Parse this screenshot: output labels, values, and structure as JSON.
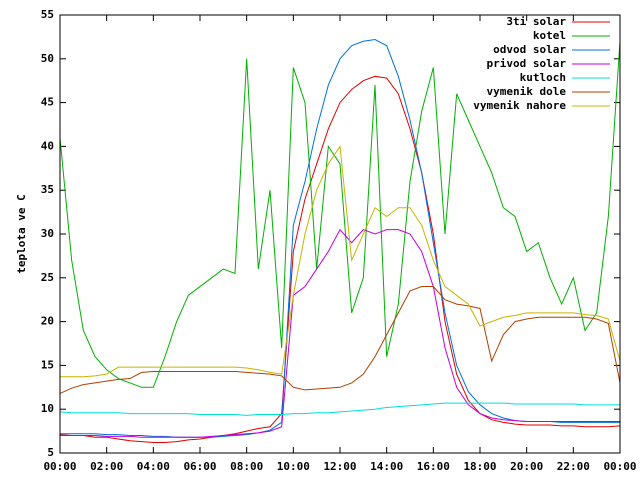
{
  "chart_data": {
    "type": "line",
    "ylabel": "teplota ve C",
    "x": [
      0,
      0.5,
      1,
      1.5,
      2,
      2.5,
      3,
      3.5,
      4,
      4.5,
      5,
      5.5,
      6,
      6.5,
      7,
      7.5,
      8,
      8.5,
      9,
      9.5,
      10,
      10.5,
      11,
      11.5,
      12,
      12.5,
      13,
      13.5,
      14,
      14.5,
      15,
      15.5,
      16,
      16.5,
      17,
      17.5,
      18,
      18.5,
      19,
      19.5,
      20,
      20.5,
      21,
      21.5,
      22,
      22.5,
      23,
      23.5,
      24
    ],
    "xlim": [
      0,
      24
    ],
    "xticks": [
      {
        "value": 0,
        "label": "00:00"
      },
      {
        "value": 2,
        "label": "02:00"
      },
      {
        "value": 4,
        "label": "04:00"
      },
      {
        "value": 6,
        "label": "06:00"
      },
      {
        "value": 8,
        "label": "08:00"
      },
      {
        "value": 10,
        "label": "10:00"
      },
      {
        "value": 12,
        "label": "12:00"
      },
      {
        "value": 14,
        "label": "14:00"
      },
      {
        "value": 16,
        "label": "16:00"
      },
      {
        "value": 18,
        "label": "18:00"
      },
      {
        "value": 20,
        "label": "20:00"
      },
      {
        "value": 22,
        "label": "22:00"
      },
      {
        "value": 24,
        "label": "00:00"
      }
    ],
    "ylim": [
      5,
      55
    ],
    "yticks": [
      5,
      10,
      15,
      20,
      25,
      30,
      35,
      40,
      45,
      50,
      55
    ],
    "legend": "upper right",
    "series": [
      {
        "name": "3ti solar",
        "color": "#e00000",
        "values": [
          7.1,
          7.0,
          7.0,
          6.8,
          6.8,
          6.6,
          6.4,
          6.3,
          6.2,
          6.2,
          6.3,
          6.5,
          6.6,
          6.8,
          7.0,
          7.2,
          7.5,
          7.8,
          8.0,
          9.5,
          28,
          34,
          38,
          42,
          45,
          46.5,
          47.5,
          48,
          47.8,
          46,
          42,
          37,
          30,
          20,
          14,
          11,
          9.5,
          8.8,
          8.5,
          8.3,
          8.2,
          8.2,
          8.2,
          8.1,
          8.1,
          8.0,
          8.0,
          8.0,
          8.1
        ]
      },
      {
        "name": "kotel",
        "color": "#00b000",
        "values": [
          41,
          27,
          19,
          16,
          14.5,
          13.5,
          13,
          12.5,
          12.5,
          16,
          20,
          23,
          24,
          25,
          26,
          25.5,
          50,
          26,
          35,
          17,
          49,
          45,
          26,
          40,
          38,
          21,
          25,
          47,
          16,
          22,
          36,
          44,
          49,
          30,
          46,
          43,
          40,
          37,
          33,
          32,
          28,
          29,
          25,
          22,
          25,
          19,
          21,
          32,
          52
        ]
      },
      {
        "name": "odvod solar",
        "color": "#0070e0",
        "values": [
          7.2,
          7.2,
          7.2,
          7.2,
          7.1,
          7.1,
          7.0,
          7.0,
          6.9,
          6.9,
          6.8,
          6.8,
          6.8,
          6.8,
          6.9,
          7.0,
          7.1,
          7.3,
          7.6,
          8.5,
          31,
          36,
          42,
          47,
          50,
          51.5,
          52,
          52.2,
          51.5,
          48,
          43,
          37,
          29,
          21,
          15,
          12,
          10.5,
          9.5,
          9,
          8.7,
          8.6,
          8.6,
          8.6,
          8.5,
          8.5,
          8.5,
          8.5,
          8.5,
          8.5
        ]
      },
      {
        "name": "privod solar",
        "color": "#c000e0",
        "values": [
          7.0,
          7.0,
          7.0,
          7.0,
          6.9,
          6.9,
          6.9,
          6.8,
          6.8,
          6.8,
          6.8,
          6.8,
          6.8,
          6.9,
          7.0,
          7.1,
          7.2,
          7.3,
          7.5,
          8.0,
          23,
          24,
          26,
          28,
          30.5,
          29,
          30.5,
          30,
          30.5,
          30.5,
          30,
          28,
          24,
          17,
          12.5,
          10.5,
          9.5,
          9,
          8.8,
          8.7,
          8.6,
          8.6,
          8.6,
          8.6,
          8.6,
          8.6,
          8.6,
          8.6,
          8.6
        ]
      },
      {
        "name": "kutloch",
        "color": "#00dddd",
        "values": [
          9.7,
          9.6,
          9.6,
          9.6,
          9.6,
          9.6,
          9.5,
          9.5,
          9.5,
          9.5,
          9.5,
          9.5,
          9.4,
          9.4,
          9.4,
          9.4,
          9.3,
          9.4,
          9.4,
          9.4,
          9.5,
          9.5,
          9.6,
          9.6,
          9.7,
          9.8,
          9.9,
          10.0,
          10.2,
          10.3,
          10.4,
          10.5,
          10.6,
          10.7,
          10.7,
          10.7,
          10.7,
          10.7,
          10.7,
          10.6,
          10.6,
          10.6,
          10.6,
          10.6,
          10.6,
          10.5,
          10.5,
          10.5,
          10.5
        ]
      },
      {
        "name": "vymenik dole",
        "color": "#b04000",
        "values": [
          11.8,
          12.4,
          12.8,
          13.0,
          13.2,
          13.4,
          13.5,
          14.2,
          14.3,
          14.3,
          14.3,
          14.3,
          14.3,
          14.3,
          14.3,
          14.3,
          14.2,
          14.1,
          14.0,
          13.8,
          12.5,
          12.2,
          12.3,
          12.4,
          12.5,
          13,
          14,
          16,
          18.5,
          21,
          23.5,
          24,
          24,
          22.5,
          22,
          21.8,
          21.5,
          15.5,
          18.5,
          20,
          20.3,
          20.5,
          20.5,
          20.5,
          20.5,
          20.5,
          20.3,
          19.8,
          13
        ]
      },
      {
        "name": "vymenik nahore",
        "color": "#c8b400",
        "values": [
          13.7,
          13.7,
          13.7,
          13.8,
          14.0,
          14.8,
          14.8,
          14.8,
          14.8,
          14.8,
          14.8,
          14.8,
          14.8,
          14.8,
          14.8,
          14.8,
          14.7,
          14.5,
          14.2,
          14.0,
          23,
          30,
          35,
          38,
          40,
          27,
          30,
          33,
          32,
          33,
          33,
          31,
          27,
          24,
          23,
          22,
          19.5,
          20,
          20.5,
          20.7,
          21,
          21,
          21,
          21,
          21,
          20.8,
          20.7,
          20.3,
          15.5
        ]
      }
    ]
  }
}
